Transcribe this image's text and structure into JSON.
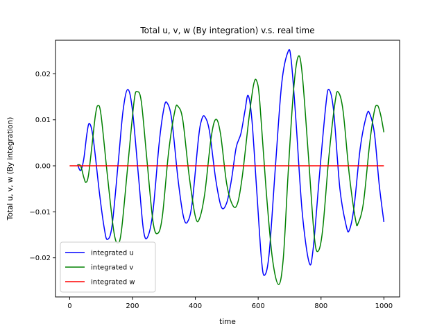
{
  "chart_data": {
    "type": "line",
    "title": "Total u, v, w (By integration) v.s. real time",
    "xlabel": "time",
    "ylabel": "Total u, v, w (By integration)",
    "xlim": [
      -45,
      1050
    ],
    "ylim": [
      -0.0285,
      0.0273
    ],
    "xticks": [
      0,
      200,
      400,
      600,
      800,
      1000
    ],
    "xtick_labels": [
      "0",
      "200",
      "400",
      "600",
      "800",
      "1000"
    ],
    "yticks": [
      -0.02,
      -0.01,
      0.0,
      0.01,
      0.02
    ],
    "ytick_labels": [
      "−0.02",
      "−0.01",
      "0.00",
      "0.01",
      "0.02"
    ],
    "grid": false,
    "legend_position": "lower-left",
    "series": [
      {
        "name": "integrated u",
        "color": "#0000ff",
        "points": [
          [
            25,
            0.0003
          ],
          [
            35,
            -0.001
          ],
          [
            45,
            0.0015
          ],
          [
            55,
            0.007
          ],
          [
            63,
            0.0092
          ],
          [
            75,
            0.006
          ],
          [
            95,
            -0.006
          ],
          [
            110,
            -0.0135
          ],
          [
            120,
            -0.016
          ],
          [
            135,
            -0.013
          ],
          [
            155,
            0.001
          ],
          [
            170,
            0.012
          ],
          [
            185,
            0.0166
          ],
          [
            200,
            0.012
          ],
          [
            220,
            -0.003
          ],
          [
            235,
            -0.014
          ],
          [
            248,
            -0.0155
          ],
          [
            265,
            -0.01
          ],
          [
            285,
            0.005
          ],
          [
            300,
            0.0125
          ],
          [
            310,
            0.0137
          ],
          [
            325,
            0.01
          ],
          [
            345,
            -0.003
          ],
          [
            362,
            -0.011
          ],
          [
            375,
            -0.0122
          ],
          [
            390,
            -0.008
          ],
          [
            410,
            0.006
          ],
          [
            420,
            0.01
          ],
          [
            430,
            0.0107
          ],
          [
            445,
            0.0075
          ],
          [
            465,
            -0.003
          ],
          [
            483,
            -0.009
          ],
          [
            500,
            -0.008
          ],
          [
            515,
            -0.003
          ],
          [
            530,
            0.004
          ],
          [
            545,
            0.007
          ],
          [
            558,
            0.012
          ],
          [
            568,
            0.0153
          ],
          [
            580,
            0.01
          ],
          [
            595,
            -0.005
          ],
          [
            610,
            -0.02
          ],
          [
            620,
            -0.0238
          ],
          [
            635,
            -0.019
          ],
          [
            655,
            0.0
          ],
          [
            675,
            0.018
          ],
          [
            695,
            0.0248
          ],
          [
            705,
            0.023
          ],
          [
            720,
            0.01
          ],
          [
            740,
            -0.01
          ],
          [
            762,
            -0.021
          ],
          [
            775,
            -0.018
          ],
          [
            795,
            -0.002
          ],
          [
            815,
            0.013
          ],
          [
            825,
            0.0166
          ],
          [
            840,
            0.012
          ],
          [
            860,
            -0.005
          ],
          [
            880,
            -0.013
          ],
          [
            890,
            -0.014
          ],
          [
            905,
            -0.009
          ],
          [
            925,
            0.004
          ],
          [
            945,
            0.011
          ],
          [
            955,
            0.0113
          ],
          [
            970,
            0.007
          ],
          [
            985,
            -0.004
          ],
          [
            1000,
            -0.0122
          ]
        ]
      },
      {
        "name": "integrated v",
        "color": "#008000",
        "points": [
          [
            25,
            0.0002
          ],
          [
            35,
            0.0
          ],
          [
            45,
            -0.0025
          ],
          [
            52,
            -0.0036
          ],
          [
            60,
            -0.002
          ],
          [
            72,
            0.005
          ],
          [
            82,
            0.011
          ],
          [
            90,
            0.0131
          ],
          [
            100,
            0.011
          ],
          [
            120,
            -0.002
          ],
          [
            140,
            -0.014
          ],
          [
            153,
            -0.0168
          ],
          [
            165,
            -0.014
          ],
          [
            185,
            0.0
          ],
          [
            205,
            0.014
          ],
          [
            215,
            0.0161
          ],
          [
            228,
            0.014
          ],
          [
            245,
            0.002
          ],
          [
            265,
            -0.012
          ],
          [
            280,
            -0.0147
          ],
          [
            295,
            -0.011
          ],
          [
            315,
            0.003
          ],
          [
            335,
            0.012
          ],
          [
            345,
            0.0129
          ],
          [
            360,
            0.01
          ],
          [
            380,
            -0.002
          ],
          [
            400,
            -0.011
          ],
          [
            413,
            -0.0115
          ],
          [
            430,
            -0.006
          ],
          [
            450,
            0.006
          ],
          [
            465,
            0.0101
          ],
          [
            480,
            0.007
          ],
          [
            500,
            -0.004
          ],
          [
            520,
            -0.0087
          ],
          [
            535,
            -0.008
          ],
          [
            550,
            -0.002
          ],
          [
            570,
            0.01
          ],
          [
            585,
            0.0175
          ],
          [
            595,
            0.0185
          ],
          [
            605,
            0.014
          ],
          [
            625,
            -0.005
          ],
          [
            645,
            -0.02
          ],
          [
            665,
            -0.0258
          ],
          [
            680,
            -0.02
          ],
          [
            695,
            -0.002
          ],
          [
            712,
            0.016
          ],
          [
            727,
            0.0237
          ],
          [
            740,
            0.02
          ],
          [
            760,
            0.002
          ],
          [
            778,
            -0.015
          ],
          [
            790,
            -0.0186
          ],
          [
            805,
            -0.014
          ],
          [
            825,
            0.002
          ],
          [
            845,
            0.014
          ],
          [
            855,
            0.016
          ],
          [
            870,
            0.012
          ],
          [
            890,
            -0.002
          ],
          [
            910,
            -0.0118
          ],
          [
            918,
            -0.0125
          ],
          [
            935,
            -0.008
          ],
          [
            955,
            0.005
          ],
          [
            970,
            0.012
          ],
          [
            980,
            0.0131
          ],
          [
            990,
            0.011
          ],
          [
            1000,
            0.0073
          ]
        ]
      },
      {
        "name": "integrated w",
        "color": "#ff0000",
        "points": [
          [
            0,
            0.0
          ],
          [
            1000,
            0.0
          ]
        ]
      }
    ]
  }
}
